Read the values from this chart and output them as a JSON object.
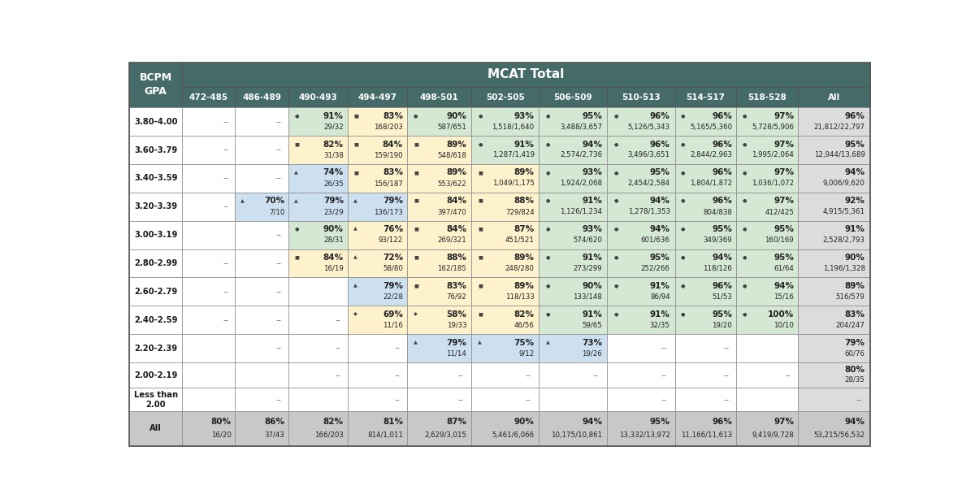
{
  "title": "MCAT Total",
  "col_headers": [
    "472-485",
    "486-489",
    "490-493",
    "494-497",
    "498-501",
    "502-505",
    "506-509",
    "510-513",
    "514-517",
    "518-528",
    "All"
  ],
  "row_labels": [
    "3.80-4.00",
    "3.60-3.79",
    "3.40-3.59",
    "3.20-3.39",
    "3.00-3.19",
    "2.80-2.99",
    "2.60-2.79",
    "2.40-2.59",
    "2.20-2.39",
    "2.00-2.19",
    "Less than\n2.00",
    "All"
  ],
  "cells": [
    [
      "--",
      "--",
      "● 91%\n29/32",
      "■ 83%\n168/203",
      "● 90%\n587/651",
      "● 93%\n1,518/1,640",
      "● 95%\n3,488/3,657",
      "● 96%\n5,126/5,343",
      "● 96%\n5,165/5,360",
      "● 97%\n5,728/5,906",
      "96%\n21,812/22,797"
    ],
    [
      "--",
      "--",
      "■ 82%\n31/38",
      "■ 84%\n159/190",
      "■ 89%\n548/618",
      "● 91%\n1,287/1,419",
      "● 94%\n2,574/2,736",
      "● 96%\n3,496/3,651",
      "● 96%\n2,844/2,963",
      "● 97%\n1,995/2,064",
      "95%\n12,944/13,689"
    ],
    [
      "--",
      "--",
      "▲ 74%\n26/35",
      "■ 83%\n156/187",
      "■ 89%\n553/622",
      "■ 89%\n1,049/1,175",
      "● 93%\n1,924/2,068",
      "● 95%\n2,454/2,584",
      "● 96%\n1,804/1,872",
      "● 97%\n1,036/1,072",
      "94%\n9,006/9,620"
    ],
    [
      "--",
      "▲ 70%\n7/10",
      "▲ 79%\n23/29",
      "▲ 79%\n136/173",
      "■ 84%\n397/470",
      "■ 88%\n729/824",
      "● 91%\n1,126/1,234",
      "● 94%\n1,278/1,353",
      "● 96%\n804/838",
      "● 97%\n412/425",
      "92%\n4,915/5,361"
    ],
    [
      "",
      "--",
      "● 90%\n28/31",
      "▲ 76%\n93/122",
      "■ 84%\n269/321",
      "■ 87%\n451/521",
      "● 93%\n574/620",
      "● 94%\n601/636",
      "● 95%\n349/369",
      "● 95%\n160/169",
      "91%\n2,528/2,793"
    ],
    [
      "--",
      "--",
      "■ 84%\n16/19",
      "▲ 72%\n58/80",
      "■ 88%\n162/185",
      "■ 89%\n248/280",
      "● 91%\n273/299",
      "● 95%\n252/266",
      "● 94%\n118/126",
      "● 95%\n61/64",
      "90%\n1,196/1,328"
    ],
    [
      "--",
      "--",
      "",
      "▲ 79%\n22/28",
      "■ 83%\n76/92",
      "■ 89%\n118/133",
      "● 90%\n133/148",
      "● 91%\n86/94",
      "● 96%\n51/53",
      "● 94%\n15/16",
      "89%\n516/579"
    ],
    [
      "--",
      "--",
      "--",
      "◆ 69%\n11/16",
      "◆ 58%\n19/33",
      "■ 82%\n46/56",
      "● 91%\n59/65",
      "● 91%\n32/35",
      "● 95%\n19/20",
      "● 100%\n10/10",
      "83%\n204/247"
    ],
    [
      "",
      "--",
      "--",
      "--",
      "▲ 79%\n11/14",
      "▲ 75%\n9/12",
      "▲ 73%\n19/26",
      "--",
      "--",
      "",
      "79%\n60/76"
    ],
    [
      "",
      "",
      "--",
      "--",
      "--",
      "--",
      "--",
      "--",
      "--",
      "--",
      "80%\n28/35"
    ],
    [
      "",
      "--",
      "",
      "--",
      "--",
      "--",
      "",
      "--",
      "--",
      "",
      "--"
    ],
    [
      "80%\n16/20",
      "86%\n37/43",
      "82%\n166/203",
      "81%\n814/1,011",
      "87%\n2,629/3,015",
      "90%\n5,461/6,066",
      "94%\n10,175/10,861",
      "95%\n13,332/13,972",
      "96%\n11,166/11,613",
      "97%\n9,419/9,728",
      "94%\n53,215/56,532"
    ]
  ],
  "cell_bg": [
    [
      "white",
      "white",
      "green",
      "yellow",
      "green",
      "green",
      "green",
      "green",
      "green",
      "green",
      "gray"
    ],
    [
      "white",
      "white",
      "yellow",
      "yellow",
      "yellow",
      "green",
      "green",
      "green",
      "green",
      "green",
      "gray"
    ],
    [
      "white",
      "white",
      "blue",
      "yellow",
      "yellow",
      "yellow",
      "green",
      "green",
      "green",
      "green",
      "gray"
    ],
    [
      "white",
      "blue",
      "blue",
      "blue",
      "yellow",
      "yellow",
      "green",
      "green",
      "green",
      "green",
      "gray"
    ],
    [
      "white",
      "white",
      "green",
      "yellow",
      "yellow",
      "yellow",
      "green",
      "green",
      "green",
      "green",
      "gray"
    ],
    [
      "white",
      "white",
      "yellow",
      "yellow",
      "yellow",
      "yellow",
      "green",
      "green",
      "green",
      "green",
      "gray"
    ],
    [
      "white",
      "white",
      "white",
      "blue",
      "yellow",
      "yellow",
      "green",
      "green",
      "green",
      "green",
      "gray"
    ],
    [
      "white",
      "white",
      "white",
      "yellow",
      "yellow",
      "yellow",
      "green",
      "green",
      "green",
      "green",
      "gray"
    ],
    [
      "white",
      "white",
      "white",
      "white",
      "blue",
      "blue",
      "blue",
      "white",
      "white",
      "white",
      "gray"
    ],
    [
      "white",
      "white",
      "white",
      "white",
      "white",
      "white",
      "white",
      "white",
      "white",
      "white",
      "gray"
    ],
    [
      "white",
      "white",
      "white",
      "white",
      "white",
      "white",
      "white",
      "white",
      "white",
      "white",
      "gray"
    ],
    [
      "silver",
      "silver",
      "silver",
      "silver",
      "silver",
      "silver",
      "silver",
      "silver",
      "silver",
      "silver",
      "silver"
    ]
  ],
  "color_map": {
    "white": "#ffffff",
    "green": "#d4e8d4",
    "yellow": "#fdf2cc",
    "blue": "#cce0f0",
    "gray": "#dcdcdc",
    "silver": "#c8c8c8"
  },
  "header_color": "#456b68",
  "header_text": "#ffffff",
  "border_color": "#888888",
  "text_color": "#222222",
  "dash_color": "#777777",
  "symbol_color": "#444444"
}
